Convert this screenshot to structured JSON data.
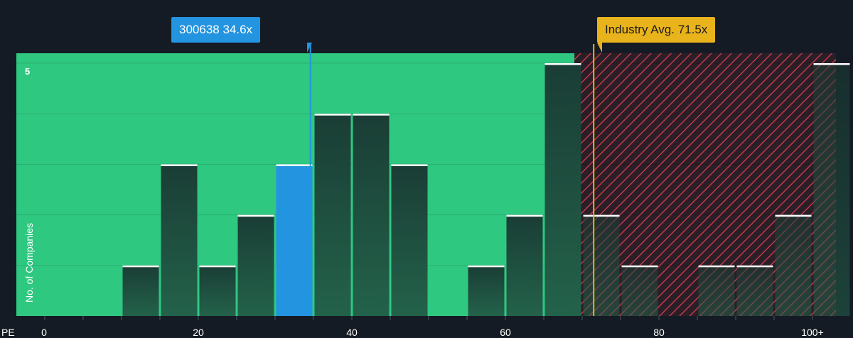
{
  "chart_data": {
    "type": "bar",
    "title": "",
    "xlabel": "PE",
    "ylabel": "No. of Companies",
    "x_tick_labels": [
      "0",
      "20",
      "40",
      "60",
      "80",
      "100+"
    ],
    "y_tick_labels": [
      "5"
    ],
    "ylim": [
      0,
      5
    ],
    "bins": [
      {
        "x0": 0,
        "x1": 5,
        "value": 0
      },
      {
        "x0": 5,
        "x1": 10,
        "value": 0
      },
      {
        "x0": 10,
        "x1": 15,
        "value": 1
      },
      {
        "x0": 15,
        "x1": 20,
        "value": 3
      },
      {
        "x0": 20,
        "x1": 25,
        "value": 1
      },
      {
        "x0": 25,
        "x1": 30,
        "value": 2
      },
      {
        "x0": 30,
        "x1": 35,
        "value": 3
      },
      {
        "x0": 35,
        "x1": 40,
        "value": 4
      },
      {
        "x0": 40,
        "x1": 45,
        "value": 4
      },
      {
        "x0": 45,
        "x1": 50,
        "value": 3
      },
      {
        "x0": 50,
        "x1": 55,
        "value": 0
      },
      {
        "x0": 55,
        "x1": 60,
        "value": 1
      },
      {
        "x0": 60,
        "x1": 65,
        "value": 2
      },
      {
        "x0": 65,
        "x1": 70,
        "value": 5
      },
      {
        "x0": 70,
        "x1": 75,
        "value": 2
      },
      {
        "x0": 75,
        "x1": 80,
        "value": 1
      },
      {
        "x0": 80,
        "x1": 85,
        "value": 0
      },
      {
        "x0": 85,
        "x1": 90,
        "value": 1
      },
      {
        "x0": 90,
        "x1": 95,
        "value": 1
      },
      {
        "x0": 95,
        "x1": 100,
        "value": 2
      },
      {
        "x0": 100,
        "x1": 105,
        "value": 5
      }
    ],
    "highlight_bin_index": 6,
    "company": {
      "ticker": "300638",
      "pe": 34.6,
      "label": "300638 34.6x"
    },
    "industry": {
      "avg": 71.5,
      "label": "Industry Avg. 71.5x"
    },
    "green_zone_end": 69,
    "grid": true,
    "colors": {
      "background": "#151b24",
      "good_zone": "#2ec880",
      "bar": "#1f4a3d",
      "highlight_bar": "#2394e0",
      "company_line": "#2394e0",
      "industry_line": "#e8b31b",
      "hatch": "#c0394a",
      "bar_cap": "#ffffff"
    }
  }
}
